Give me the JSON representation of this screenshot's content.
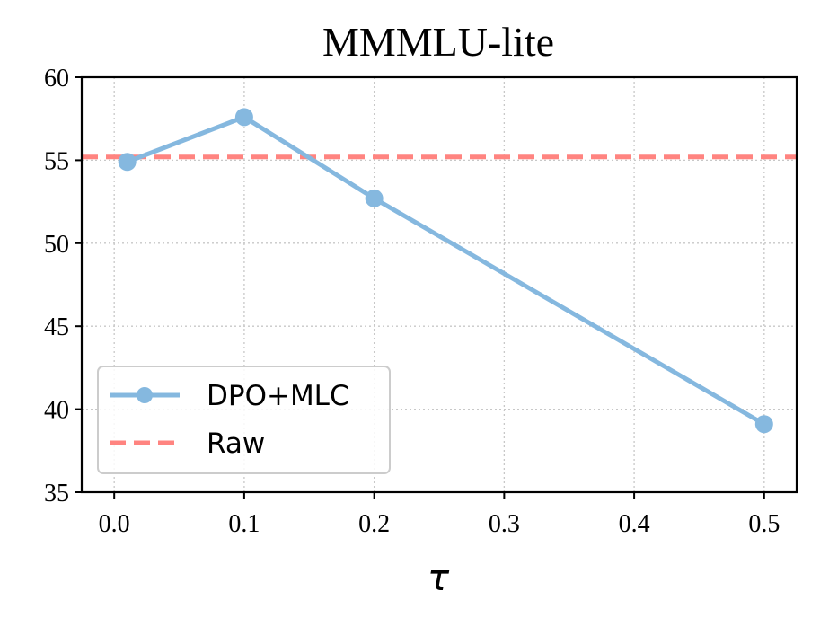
{
  "chart_data": {
    "type": "line",
    "title": "MMMLU-lite",
    "xlabel": "τ",
    "ylabel": "",
    "xlim": [
      -0.025,
      0.525
    ],
    "ylim": [
      35,
      60
    ],
    "xticks": [
      0.0,
      0.1,
      0.2,
      0.3,
      0.4,
      0.5
    ],
    "xtick_labels": [
      "0.0",
      "0.1",
      "0.2",
      "0.3",
      "0.4",
      "0.5"
    ],
    "yticks": [
      35,
      40,
      45,
      50,
      55,
      60
    ],
    "ytick_labels": [
      "35",
      "40",
      "45",
      "50",
      "55",
      "60"
    ],
    "grid": true,
    "legend_position": "lower-left",
    "series": [
      {
        "name": "DPO+MLC",
        "style": "solid-marker",
        "color": "#85b8df",
        "x": [
          0.01,
          0.1,
          0.2,
          0.5
        ],
        "y": [
          54.9,
          57.6,
          52.7,
          39.1
        ]
      },
      {
        "name": "Raw",
        "style": "dashed-hline",
        "color": "#ff8480",
        "y": 55.2
      }
    ]
  }
}
